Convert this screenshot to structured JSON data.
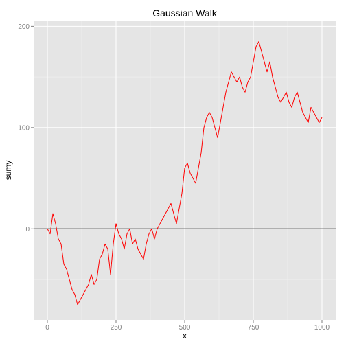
{
  "chart_data": {
    "type": "line",
    "title": "Gaussian Walk",
    "xlabel": "x",
    "ylabel": "sumy",
    "xlim": [
      -50,
      1050
    ],
    "ylim": [
      -90,
      205
    ],
    "x_ticks": [
      0,
      250,
      500,
      750,
      1000
    ],
    "x_tick_labels": [
      "0",
      "250",
      "500",
      "750",
      "1000"
    ],
    "y_ticks": [
      0,
      100,
      200
    ],
    "y_tick_labels": [
      "0",
      "100",
      "200"
    ],
    "grid": true,
    "legend": "none",
    "reference_line": {
      "y": 0,
      "color": "#000000"
    },
    "series": [
      {
        "color": "#ff0000",
        "x": [
          0,
          10,
          20,
          30,
          40,
          50,
          60,
          70,
          80,
          90,
          100,
          110,
          120,
          130,
          140,
          150,
          160,
          170,
          180,
          190,
          200,
          210,
          220,
          230,
          240,
          250,
          260,
          270,
          280,
          290,
          300,
          310,
          320,
          330,
          340,
          350,
          360,
          370,
          380,
          390,
          400,
          410,
          420,
          430,
          440,
          450,
          460,
          470,
          480,
          490,
          500,
          510,
          520,
          530,
          540,
          550,
          560,
          570,
          580,
          590,
          600,
          610,
          620,
          630,
          640,
          650,
          660,
          670,
          680,
          690,
          700,
          710,
          720,
          730,
          740,
          750,
          760,
          770,
          780,
          790,
          800,
          810,
          820,
          830,
          840,
          850,
          860,
          870,
          880,
          890,
          900,
          910,
          920,
          930,
          940,
          950,
          960,
          970,
          980,
          990,
          1000
        ],
        "y": [
          0,
          -5,
          15,
          5,
          -10,
          -15,
          -35,
          -40,
          -50,
          -60,
          -65,
          -75,
          -70,
          -65,
          -60,
          -55,
          -45,
          -55,
          -50,
          -30,
          -25,
          -15,
          -20,
          -45,
          -15,
          5,
          -5,
          -10,
          -20,
          -5,
          0,
          -15,
          -10,
          -20,
          -25,
          -30,
          -15,
          -5,
          0,
          -10,
          0,
          5,
          10,
          15,
          20,
          25,
          15,
          5,
          20,
          35,
          60,
          65,
          55,
          50,
          45,
          60,
          75,
          100,
          110,
          115,
          110,
          100,
          90,
          105,
          120,
          135,
          145,
          155,
          150,
          145,
          150,
          140,
          135,
          145,
          150,
          165,
          180,
          185,
          175,
          165,
          155,
          165,
          150,
          140,
          130,
          125,
          130,
          135,
          125,
          120,
          130,
          135,
          125,
          115,
          110,
          105,
          120,
          115,
          110,
          105,
          110
        ]
      }
    ]
  }
}
